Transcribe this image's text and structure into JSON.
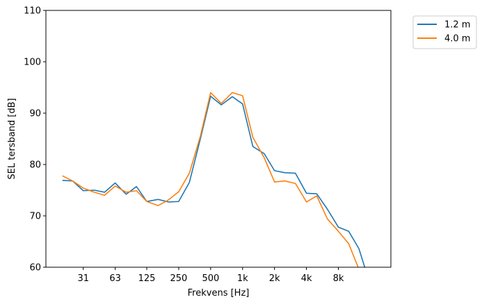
{
  "chart_data": {
    "type": "line",
    "xlabel": "Frekvens [Hz]",
    "ylabel": "SEL tersband [dB]",
    "xscale": "log",
    "xlim": [
      14,
      25000
    ],
    "ylim": [
      60,
      110
    ],
    "y_ticks": [
      60,
      70,
      80,
      90,
      100,
      110
    ],
    "x_ticks": [
      {
        "value": 31.5,
        "label": "31"
      },
      {
        "value": 63,
        "label": "63"
      },
      {
        "value": 125,
        "label": "125"
      },
      {
        "value": 250,
        "label": "250"
      },
      {
        "value": 500,
        "label": "500"
      },
      {
        "value": 1000,
        "label": "1k"
      },
      {
        "value": 2000,
        "label": "2k"
      },
      {
        "value": 4000,
        "label": "4k"
      },
      {
        "value": 8000,
        "label": "8k"
      }
    ],
    "x": [
      20,
      25,
      31.5,
      40,
      50,
      63,
      80,
      100,
      125,
      160,
      200,
      250,
      315,
      400,
      500,
      630,
      800,
      1000,
      1250,
      1600,
      2000,
      2500,
      3150,
      4000,
      5000,
      6300,
      8000,
      10000,
      12500,
      16000
    ],
    "series": [
      {
        "name": "1.2 m",
        "color": "#1f77b4",
        "values": [
          76.9,
          76.8,
          74.9,
          75.0,
          74.6,
          76.4,
          74.2,
          75.7,
          72.8,
          73.2,
          72.7,
          72.8,
          76.5,
          85.0,
          93.3,
          91.6,
          93.2,
          91.8,
          83.5,
          82.1,
          78.8,
          78.4,
          78.3,
          74.4,
          74.3,
          71.3,
          67.8,
          67.0,
          63.6,
          56.5
        ]
      },
      {
        "name": "4.0 m",
        "color": "#ff7f0e",
        "values": [
          77.8,
          76.8,
          75.4,
          74.6,
          74.0,
          75.8,
          74.6,
          74.9,
          72.8,
          72.0,
          73.1,
          74.7,
          78.3,
          85.5,
          94.0,
          91.9,
          94.0,
          93.4,
          85.3,
          81.3,
          76.6,
          76.8,
          76.3,
          72.7,
          73.9,
          69.4,
          67.0,
          64.6,
          59.6,
          55.5
        ]
      }
    ],
    "grid": false,
    "legend_position": "outside-top-right"
  }
}
